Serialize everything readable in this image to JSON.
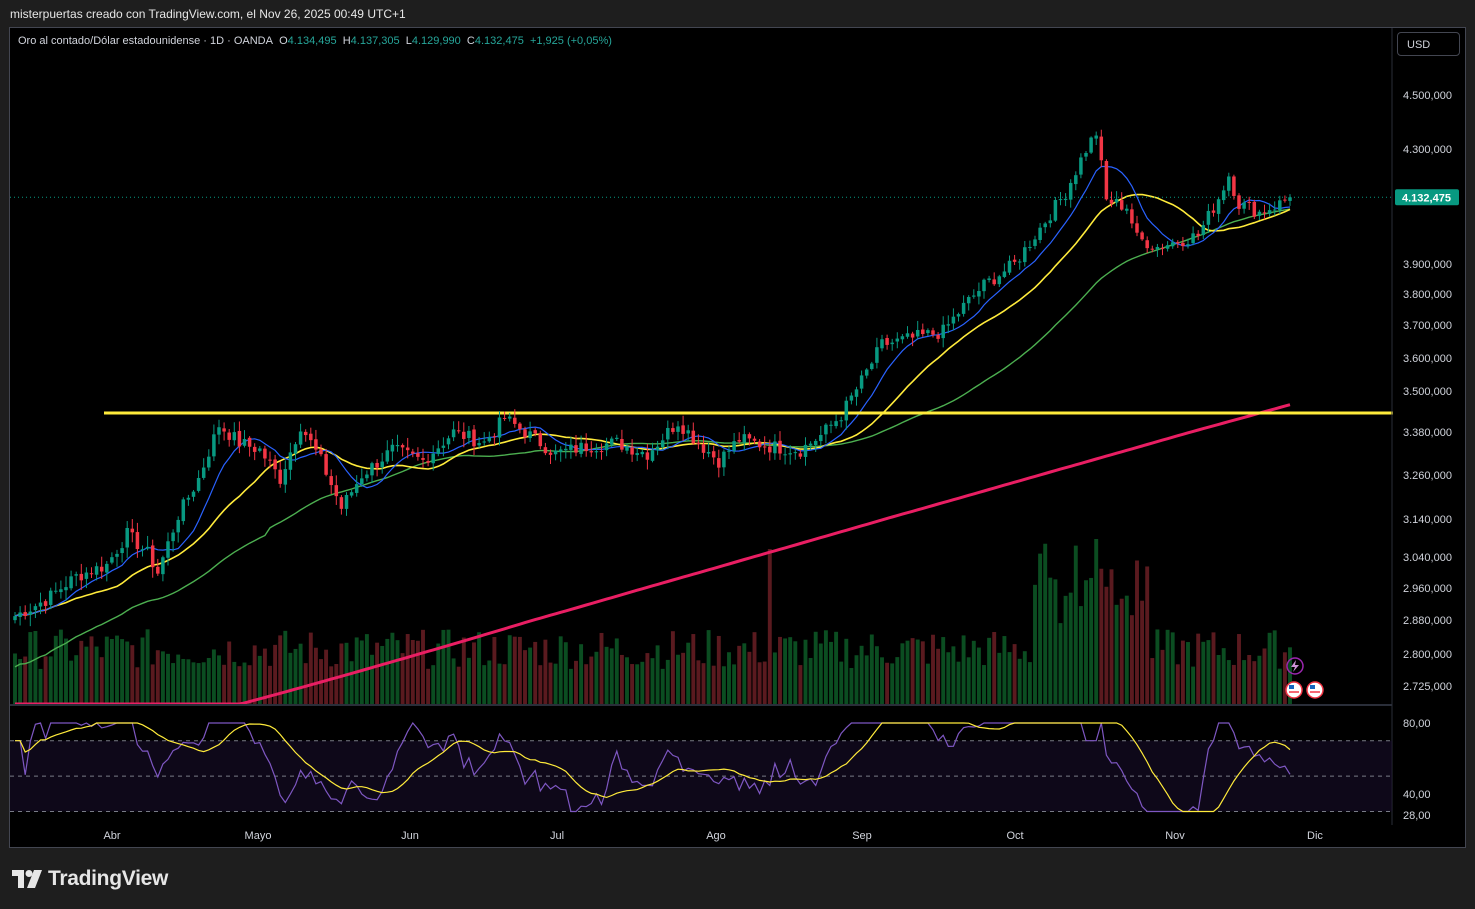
{
  "header": {
    "caption": "misterpuertas creado con TradingView.com, el Nov 26, 2025 00:49 UTC+1"
  },
  "legend": {
    "symbol": "Oro al contado/Dólar estadounidense · 1D · OANDA",
    "open_label": "O",
    "open": "4.134,495",
    "high_label": "H",
    "high": "4.137,305",
    "low_label": "L",
    "low": "4.129,990",
    "close_label": "C",
    "close": "4.132,475",
    "change": "+1,925 (+0,05%)"
  },
  "currency_button": "USD",
  "price_badge": "4.132,475",
  "price_axis": [
    "4.500,000",
    "4.300,000",
    "3.900,000",
    "3.800,000",
    "3.700,000",
    "3.600,000",
    "3.500,000",
    "3.380,000",
    "3.260,000",
    "3.140,000",
    "3.040,000",
    "2.960,000",
    "2.880,000",
    "2.800,000",
    "2.725,000"
  ],
  "rsi_axis": [
    "80,00",
    "40,00",
    "28,00"
  ],
  "time_axis": [
    "Abr",
    "Mayo",
    "Jun",
    "Jul",
    "Ago",
    "Sep",
    "Oct",
    "Nov",
    "Dic"
  ],
  "footer": {
    "brand": "TradingView"
  },
  "colors": {
    "up": "#089981",
    "down": "#f23645",
    "ma_blue": "#2962ff",
    "ma_yellow": "#ffeb3b",
    "ma_green": "#4caf50",
    "ma_pink": "#e91e63",
    "resistance": "#ffeb3b",
    "rsi_line": "#7e57c2",
    "rsi_ma": "#ffeb3b"
  },
  "chart_data": {
    "type": "candlestick",
    "title": "Oro al contado/Dólar estadounidense · 1D · OANDA",
    "x_range": [
      "Mar",
      "Dic"
    ],
    "ylim": [
      2700,
      4560
    ],
    "horizontal_level": 3435,
    "waypoints": [
      {
        "d": 0,
        "p": 2890
      },
      {
        "d": 6,
        "p": 2930
      },
      {
        "d": 12,
        "p": 2990
      },
      {
        "d": 18,
        "p": 3020
      },
      {
        "d": 22,
        "p": 3100
      },
      {
        "d": 26,
        "p": 3050
      },
      {
        "d": 28,
        "p": 3000
      },
      {
        "d": 32,
        "p": 3150
      },
      {
        "d": 36,
        "p": 3250
      },
      {
        "d": 40,
        "p": 3400
      },
      {
        "d": 44,
        "p": 3350
      },
      {
        "d": 48,
        "p": 3330
      },
      {
        "d": 52,
        "p": 3250
      },
      {
        "d": 56,
        "p": 3400
      },
      {
        "d": 60,
        "p": 3300
      },
      {
        "d": 64,
        "p": 3170
      },
      {
        "d": 68,
        "p": 3260
      },
      {
        "d": 74,
        "p": 3330
      },
      {
        "d": 80,
        "p": 3300
      },
      {
        "d": 86,
        "p": 3380
      },
      {
        "d": 92,
        "p": 3350
      },
      {
        "d": 96,
        "p": 3420
      },
      {
        "d": 100,
        "p": 3380
      },
      {
        "d": 106,
        "p": 3320
      },
      {
        "d": 112,
        "p": 3340
      },
      {
        "d": 118,
        "p": 3350
      },
      {
        "d": 124,
        "p": 3320
      },
      {
        "d": 130,
        "p": 3410
      },
      {
        "d": 134,
        "p": 3350
      },
      {
        "d": 138,
        "p": 3300
      },
      {
        "d": 142,
        "p": 3360
      },
      {
        "d": 148,
        "p": 3340
      },
      {
        "d": 154,
        "p": 3330
      },
      {
        "d": 158,
        "p": 3370
      },
      {
        "d": 162,
        "p": 3430
      },
      {
        "d": 166,
        "p": 3530
      },
      {
        "d": 170,
        "p": 3640
      },
      {
        "d": 176,
        "p": 3660
      },
      {
        "d": 182,
        "p": 3680
      },
      {
        "d": 186,
        "p": 3760
      },
      {
        "d": 190,
        "p": 3830
      },
      {
        "d": 196,
        "p": 3900
      },
      {
        "d": 202,
        "p": 4050
      },
      {
        "d": 206,
        "p": 4150
      },
      {
        "d": 210,
        "p": 4300
      },
      {
        "d": 212,
        "p": 4360
      },
      {
        "d": 214,
        "p": 4120
      },
      {
        "d": 218,
        "p": 4100
      },
      {
        "d": 220,
        "p": 3990
      },
      {
        "d": 224,
        "p": 3960
      },
      {
        "d": 228,
        "p": 3980
      },
      {
        "d": 232,
        "p": 4000
      },
      {
        "d": 236,
        "p": 4130
      },
      {
        "d": 238,
        "p": 4210
      },
      {
        "d": 240,
        "p": 4110
      },
      {
        "d": 244,
        "p": 4080
      },
      {
        "d": 248,
        "p": 4110
      },
      {
        "d": 250,
        "p": 4132
      }
    ],
    "moving_averages": [
      {
        "name": "blue",
        "period": 9
      },
      {
        "name": "yellow",
        "period": 21
      },
      {
        "name": "green",
        "period": 50
      },
      {
        "name": "pink",
        "period": 200
      }
    ],
    "rsi": {
      "ylim": [
        28,
        80
      ],
      "levels": [
        70,
        50,
        30
      ]
    }
  }
}
